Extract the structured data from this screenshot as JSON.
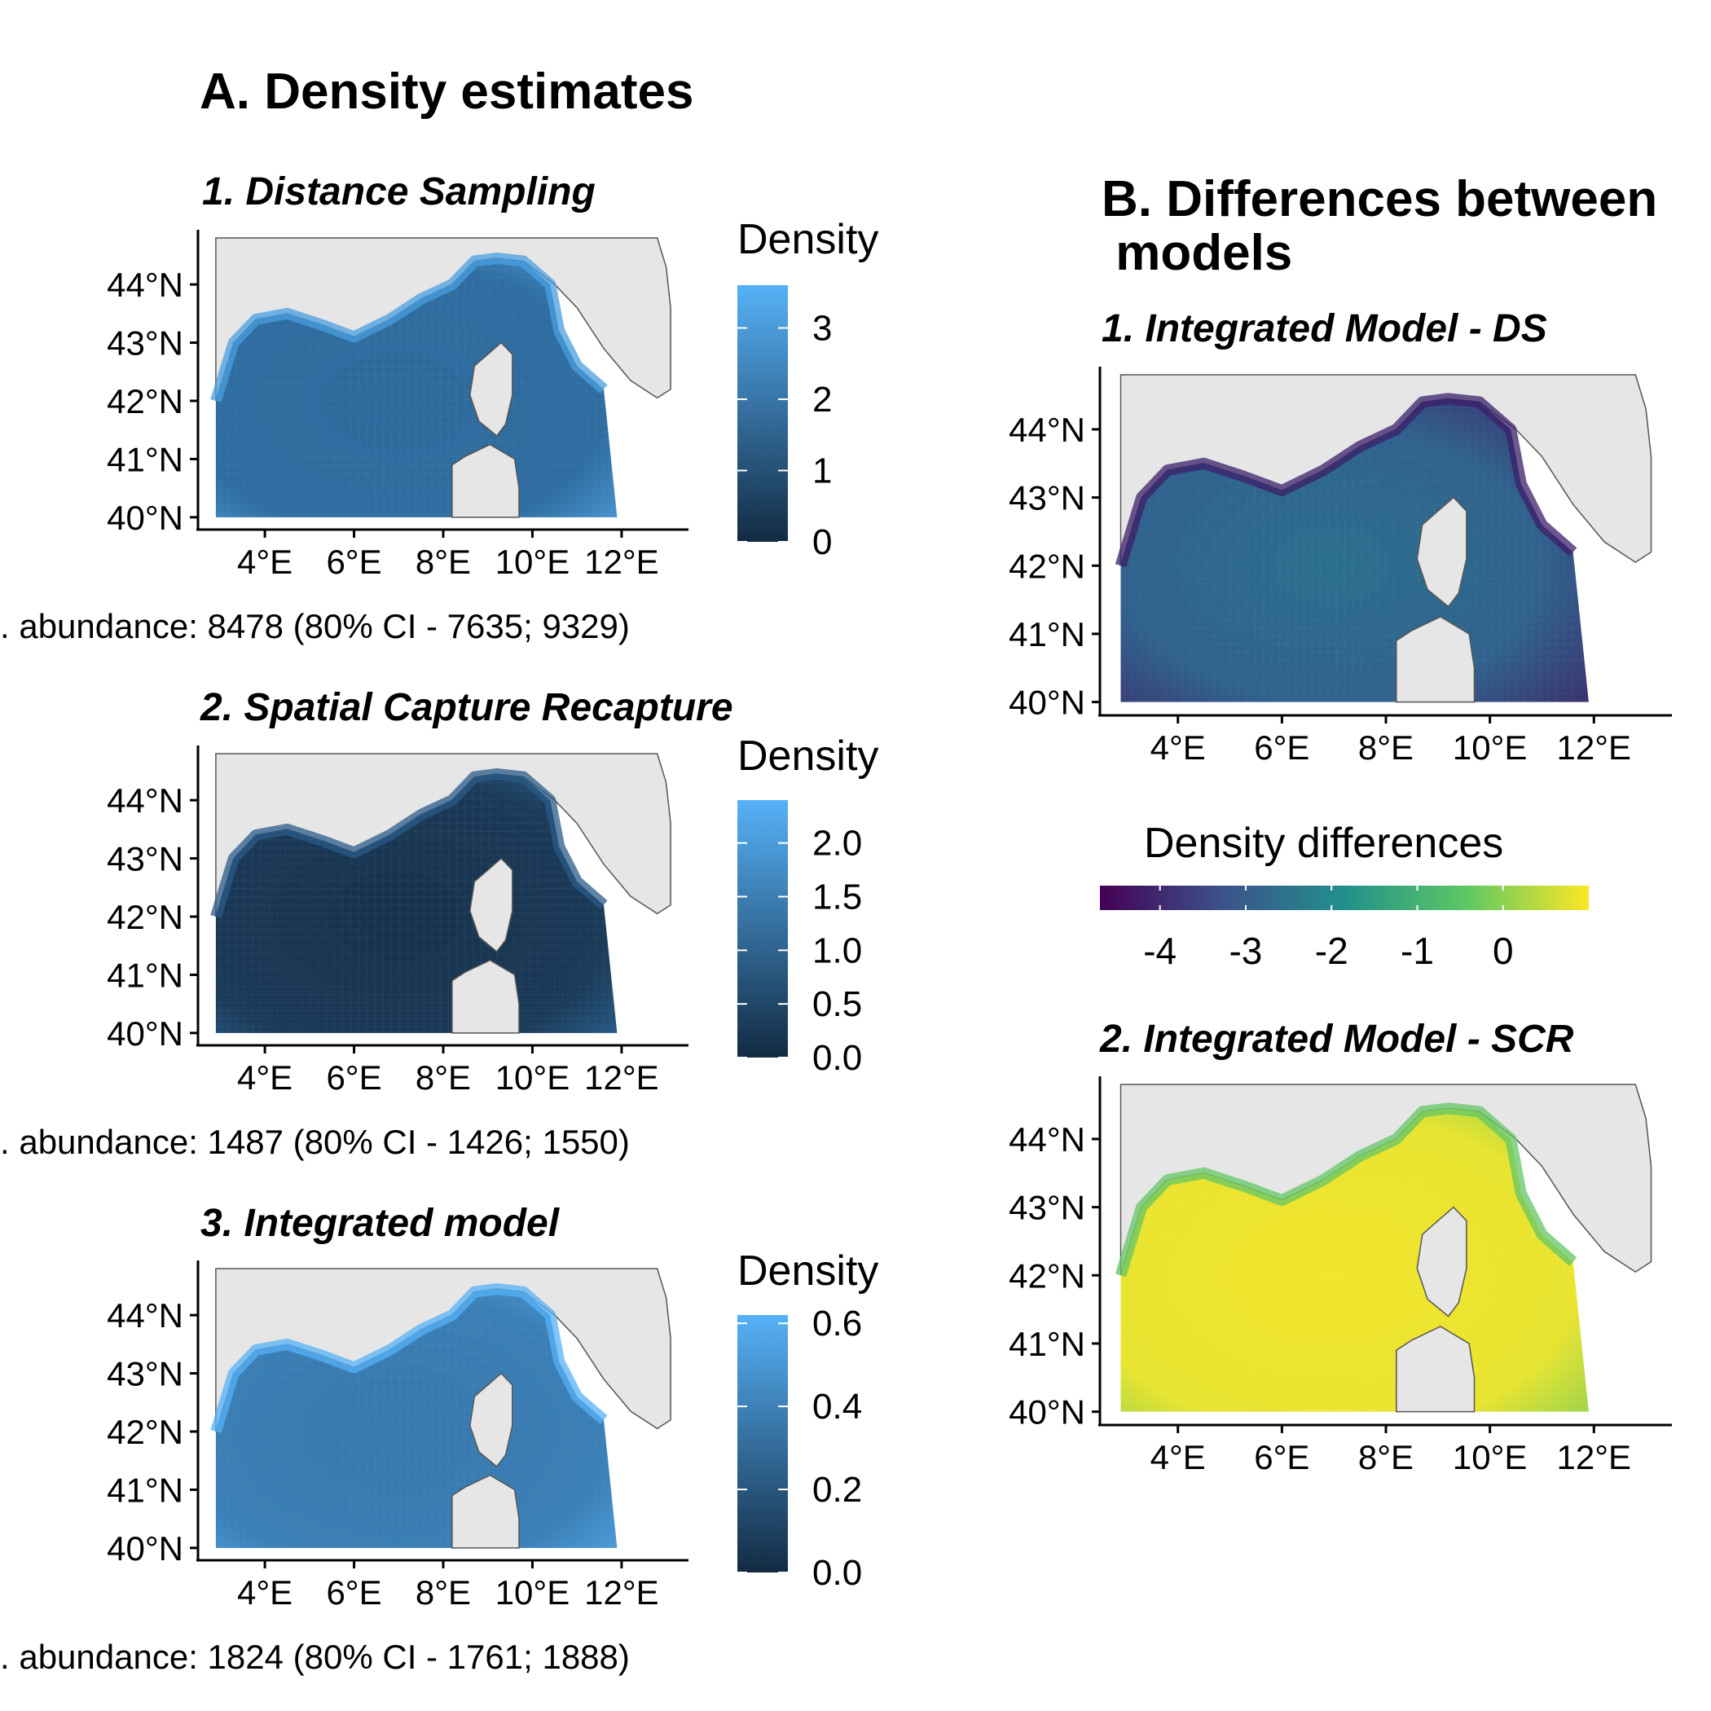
{
  "section_a": {
    "title": "A. Density estimates"
  },
  "section_b": {
    "title": "B. Differences between\n models"
  },
  "colors": {
    "blue_low": "#132B43",
    "blue_high": "#56B1F7",
    "viridis": [
      "#440154",
      "#3B528B",
      "#21908C",
      "#5DC863",
      "#FDE725"
    ],
    "land": "#e6e6e6",
    "coast": "#555555"
  },
  "chart_data": [
    {
      "type": "heatmap",
      "title": "1. Distance Sampling",
      "x_ticks": [
        "4°E",
        "6°E",
        "8°E",
        "10°E",
        "12°E"
      ],
      "y_ticks": [
        "44°N",
        "43°N",
        "42°N",
        "41°N",
        "40°N"
      ],
      "xlim": [
        2.5,
        13.5
      ],
      "ylim": [
        39.9,
        44.8
      ],
      "legend": {
        "title": "Density",
        "min": 0,
        "max": 3.6,
        "ticks": [
          "3",
          "2",
          "1",
          "0"
        ],
        "tick_values": [
          3,
          2,
          1,
          0
        ]
      },
      "abundance": ". abundance: 8478 (80% CI - 7635; 9329)"
    },
    {
      "type": "heatmap",
      "title": "2. Spatial Capture Recapture",
      "x_ticks": [
        "4°E",
        "6°E",
        "8°E",
        "10°E",
        "12°E"
      ],
      "y_ticks": [
        "44°N",
        "43°N",
        "42°N",
        "41°N",
        "40°N"
      ],
      "xlim": [
        2.5,
        13.5
      ],
      "ylim": [
        39.9,
        44.8
      ],
      "legend": {
        "title": "Density",
        "min": 0,
        "max": 2.4,
        "ticks": [
          "2.0",
          "1.5",
          "1.0",
          "0.5",
          "0.0"
        ],
        "tick_values": [
          2.0,
          1.5,
          1.0,
          0.5,
          0.0
        ]
      },
      "abundance": ". abundance: 1487 (80% CI - 1426; 1550)"
    },
    {
      "type": "heatmap",
      "title": "3. Integrated model",
      "x_ticks": [
        "4°E",
        "6°E",
        "8°E",
        "10°E",
        "12°E"
      ],
      "y_ticks": [
        "44°N",
        "43°N",
        "42°N",
        "41°N",
        "40°N"
      ],
      "xlim": [
        2.5,
        13.5
      ],
      "ylim": [
        39.9,
        44.8
      ],
      "legend": {
        "title": "Density",
        "min": 0,
        "max": 0.62,
        "ticks": [
          "0.6",
          "0.4",
          "0.2",
          "0.0"
        ],
        "tick_values": [
          0.6,
          0.4,
          0.2,
          0.0
        ]
      },
      "abundance": ". abundance: 1824 (80% CI - 1761; 1888)"
    },
    {
      "type": "heatmap",
      "title": "1. Integrated Model - DS",
      "x_ticks": [
        "4°E",
        "6°E",
        "8°E",
        "10°E",
        "12°E"
      ],
      "y_ticks": [
        "44°N",
        "43°N",
        "42°N",
        "41°N",
        "40°N"
      ],
      "xlim": [
        2.5,
        13.5
      ],
      "ylim": [
        39.9,
        44.8
      ]
    },
    {
      "type": "heatmap",
      "title": "2. Integrated Model - SCR",
      "x_ticks": [
        "4°E",
        "6°E",
        "8°E",
        "10°E",
        "12°E"
      ],
      "y_ticks": [
        "44°N",
        "43°N",
        "42°N",
        "41°N",
        "40°N"
      ],
      "xlim": [
        2.5,
        13.5
      ],
      "ylim": [
        39.9,
        44.8
      ]
    }
  ],
  "diff_legend": {
    "title": "Density differences",
    "min": -4.7,
    "max": 1.0,
    "ticks": [
      "-4",
      "-3",
      "-2",
      "-1",
      "0"
    ],
    "tick_values": [
      -4,
      -3,
      -2,
      -1,
      0
    ]
  }
}
